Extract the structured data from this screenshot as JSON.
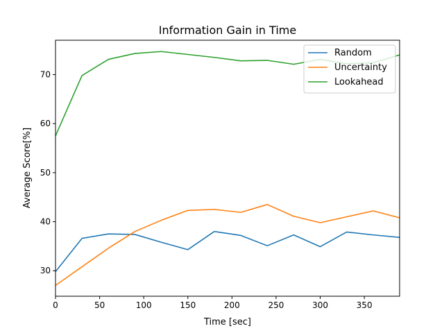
{
  "chart_data": {
    "type": "line",
    "title": "Information Gain in Time",
    "xlabel": "Time [sec]",
    "ylabel": "Average Score[%]",
    "xlim": [
      0,
      390
    ],
    "ylim": [
      24.8,
      77
    ],
    "xticks": [
      0,
      50,
      100,
      150,
      200,
      250,
      300,
      350
    ],
    "yticks": [
      30,
      40,
      50,
      60,
      70
    ],
    "grid": false,
    "legend_position": "upper right",
    "x": [
      0,
      30,
      60,
      90,
      120,
      150,
      180,
      210,
      240,
      270,
      300,
      330,
      360,
      390
    ],
    "series": [
      {
        "name": "Random",
        "color": "#1f77b4",
        "values": [
          29.8,
          36.6,
          37.5,
          37.4,
          35.8,
          34.3,
          38.0,
          37.2,
          35.1,
          37.3,
          34.9,
          37.9,
          37.3,
          36.8
        ]
      },
      {
        "name": "Uncertainty",
        "color": "#ff7f0e",
        "values": [
          27.0,
          30.8,
          34.6,
          38.0,
          40.3,
          42.3,
          42.5,
          41.9,
          43.5,
          41.1,
          39.8,
          41.0,
          42.2,
          40.8
        ]
      },
      {
        "name": "Lookahead",
        "color": "#2ca02c",
        "values": [
          57.5,
          69.8,
          73.1,
          74.3,
          74.7,
          74.1,
          73.5,
          72.8,
          72.9,
          72.1,
          73.1,
          72.2,
          72.4,
          74.0
        ]
      }
    ]
  }
}
